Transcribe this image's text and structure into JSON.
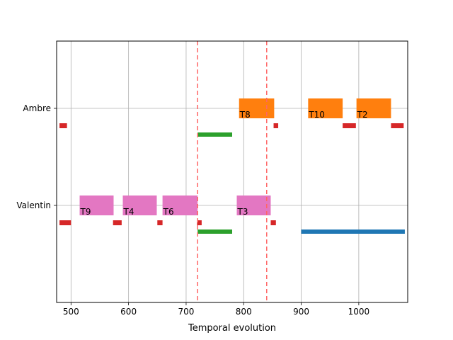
{
  "chart_data": {
    "type": "gantt",
    "xlabel": "Temporal evolution",
    "xlim": [
      475,
      1085
    ],
    "x_ticks": [
      500,
      600,
      700,
      800,
      900,
      1000
    ],
    "rows": [
      "Valentin",
      "Ambre"
    ],
    "grid": true,
    "tasks": [
      {
        "label": "T9",
        "row": "Valentin",
        "start": 515,
        "end": 574,
        "color": "#e377c2"
      },
      {
        "label": "T4",
        "row": "Valentin",
        "start": 590,
        "end": 649,
        "color": "#e377c2"
      },
      {
        "label": "T6",
        "row": "Valentin",
        "start": 659,
        "end": 720,
        "color": "#e377c2"
      },
      {
        "label": "T3",
        "row": "Valentin",
        "start": 788,
        "end": 847,
        "color": "#e377c2"
      },
      {
        "label": "T8",
        "row": "Ambre",
        "start": 792,
        "end": 853,
        "color": "#ff7f0e"
      },
      {
        "label": "T10",
        "row": "Ambre",
        "start": 912,
        "end": 972,
        "color": "#ff7f0e"
      },
      {
        "label": "T2",
        "row": "Ambre",
        "start": 996,
        "end": 1056,
        "color": "#ff7f0e"
      }
    ],
    "red_segments": [
      {
        "row": "Valentin",
        "start": 480,
        "end": 500
      },
      {
        "row": "Valentin",
        "start": 573,
        "end": 588
      },
      {
        "row": "Valentin",
        "start": 650,
        "end": 659
      },
      {
        "row": "Valentin",
        "start": 719,
        "end": 727
      },
      {
        "row": "Valentin",
        "start": 847,
        "end": 856
      },
      {
        "row": "Ambre",
        "start": 480,
        "end": 493
      },
      {
        "row": "Ambre",
        "start": 852,
        "end": 860
      },
      {
        "row": "Ambre",
        "start": 972,
        "end": 995
      },
      {
        "row": "Ambre",
        "start": 1056,
        "end": 1078
      }
    ],
    "green_segments": [
      {
        "row": "Valentin",
        "start": 720,
        "end": 780
      },
      {
        "row": "Ambre",
        "start": 720,
        "end": 780
      }
    ],
    "blue_segments": [
      {
        "row": "Valentin",
        "start": 900,
        "end": 1080
      }
    ],
    "vlines": [
      720,
      840
    ],
    "colors": {
      "task_valentin": "#e377c2",
      "task_ambre": "#ff7f0e",
      "idle": "#d62728",
      "green": "#2ca02c",
      "blue": "#1f77b4",
      "vline": "#ff6666",
      "grid": "#b0b0b0"
    }
  }
}
